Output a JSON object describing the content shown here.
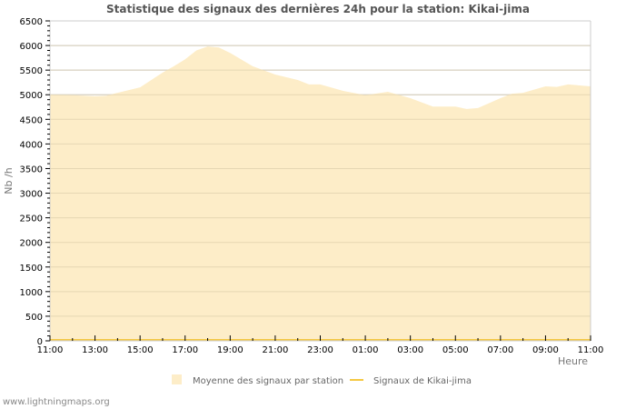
{
  "chart_data": {
    "type": "area",
    "title": "Statistique des signaux des dernières 24h pour la station: Kikai-jima",
    "xlabel": "Heure",
    "ylabel": "Nb /h",
    "ylim": [
      0,
      6500
    ],
    "yticks": [
      0,
      500,
      1000,
      1500,
      2000,
      2500,
      3000,
      3500,
      4000,
      4500,
      5000,
      5500,
      6000,
      6500
    ],
    "xtick_labels": [
      "11:00",
      "13:00",
      "15:00",
      "17:00",
      "19:00",
      "21:00",
      "23:00",
      "01:00",
      "03:00",
      "05:00",
      "07:00",
      "09:00",
      "11:00"
    ],
    "grid": true,
    "legend_position": "bottom",
    "x_hours": [
      0,
      1,
      2,
      2.5,
      3,
      4,
      5,
      5.5,
      6,
      6.5,
      7,
      7.5,
      8,
      9,
      10,
      11,
      11.5,
      12,
      13,
      14,
      15,
      16,
      17,
      18,
      18.5,
      19,
      20,
      20.5,
      21,
      22,
      22.5,
      23,
      24
    ],
    "series": [
      {
        "name": "Moyenne des signaux par station",
        "style": "area",
        "color": "#fdedc8",
        "values": [
          5000,
          4990,
          4970,
          4980,
          5040,
          5150,
          5450,
          5580,
          5720,
          5900,
          5980,
          5960,
          5850,
          5580,
          5410,
          5300,
          5210,
          5210,
          5080,
          4990,
          5060,
          4930,
          4760,
          4760,
          4710,
          4730,
          4930,
          5020,
          5040,
          5170,
          5160,
          5210,
          5170
        ]
      },
      {
        "name": "Signaux de Kikai-jima",
        "style": "line",
        "color": "#f5c842",
        "values": [
          0,
          0,
          0,
          0,
          0,
          0,
          0,
          0,
          0,
          0,
          0,
          0,
          0,
          0,
          0,
          0,
          0,
          0,
          0,
          0,
          0,
          0,
          0,
          0,
          0,
          0,
          0,
          0,
          0,
          0,
          0,
          0,
          0
        ]
      }
    ]
  },
  "footer": {
    "credit": "www.lightningmaps.org"
  }
}
